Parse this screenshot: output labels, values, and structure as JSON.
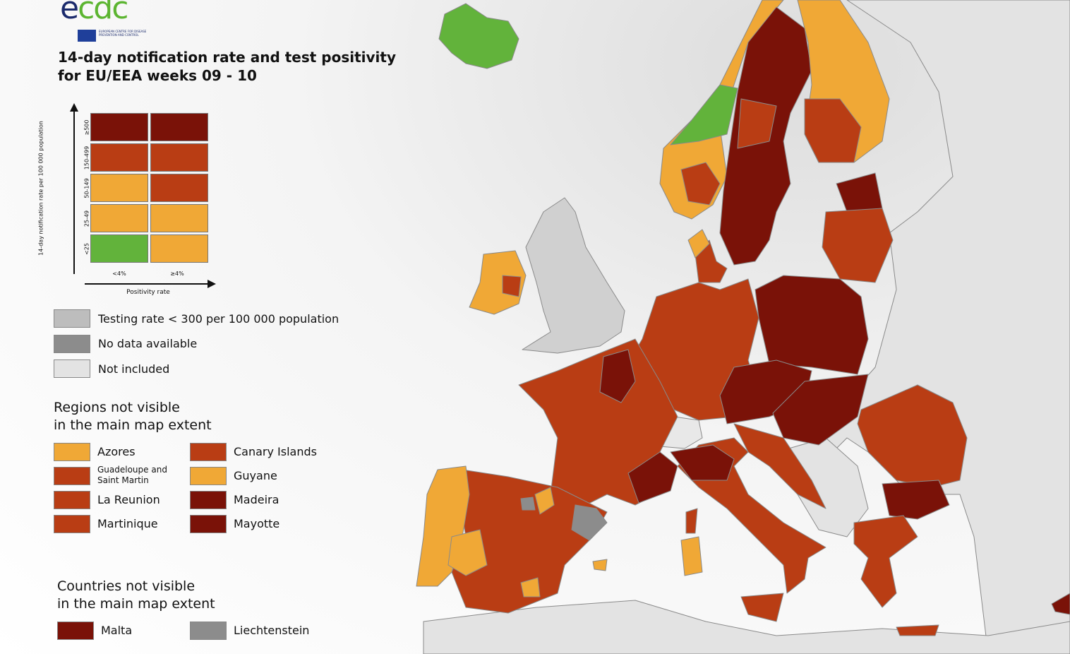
{
  "logo": {
    "text_e": "e",
    "text_cdc": "cdc",
    "subtitle": "EUROPEAN CENTRE FOR DISEASE PREVENTION AND CONTROL"
  },
  "title_line1": "14-day notification rate and test positivity",
  "title_line2": "for EU/EEA weeks 09 - 10",
  "colors": {
    "dark_red": "#7a1208",
    "red": "#b93d14",
    "orange": "#f0a836",
    "green": "#62b33b",
    "testing_low": "#bdbdbd",
    "no_data": "#8c8c8c",
    "not_included": "#e3e3e3"
  },
  "matrix": {
    "y_label": "14-day notification rate per 100 000 population",
    "x_label": "Positivity rate",
    "x_ticks": [
      "<4%",
      "≥4%"
    ],
    "y_ticks": [
      "≥500",
      "150-499",
      "50-149",
      "25-49",
      "<25"
    ],
    "rows": [
      [
        "dark_red",
        "dark_red"
      ],
      [
        "red",
        "red"
      ],
      [
        "orange",
        "red"
      ],
      [
        "orange",
        "orange"
      ],
      [
        "green",
        "orange"
      ]
    ]
  },
  "legend": {
    "testing": "Testing rate < 300 per 100 000 population",
    "no_data": "No data available",
    "not_included": "Not included"
  },
  "regions": {
    "heading1": "Regions not visible",
    "heading2": "in the main map extent",
    "items": [
      {
        "label": "Azores",
        "color": "orange"
      },
      {
        "label": "Canary Islands",
        "color": "red"
      },
      {
        "label": "Guadeloupe and Saint Martin",
        "color": "red"
      },
      {
        "label": "Guyane",
        "color": "orange"
      },
      {
        "label": "La Reunion",
        "color": "red"
      },
      {
        "label": "Madeira",
        "color": "dark_red"
      },
      {
        "label": "Martinique",
        "color": "red"
      },
      {
        "label": "Mayotte",
        "color": "dark_red"
      }
    ]
  },
  "countries": {
    "heading1": "Countries not visible",
    "heading2": "in the main map extent",
    "items": [
      {
        "label": "Malta",
        "color": "dark_red"
      },
      {
        "label": "Liechtenstein",
        "color": "no_data"
      }
    ]
  }
}
